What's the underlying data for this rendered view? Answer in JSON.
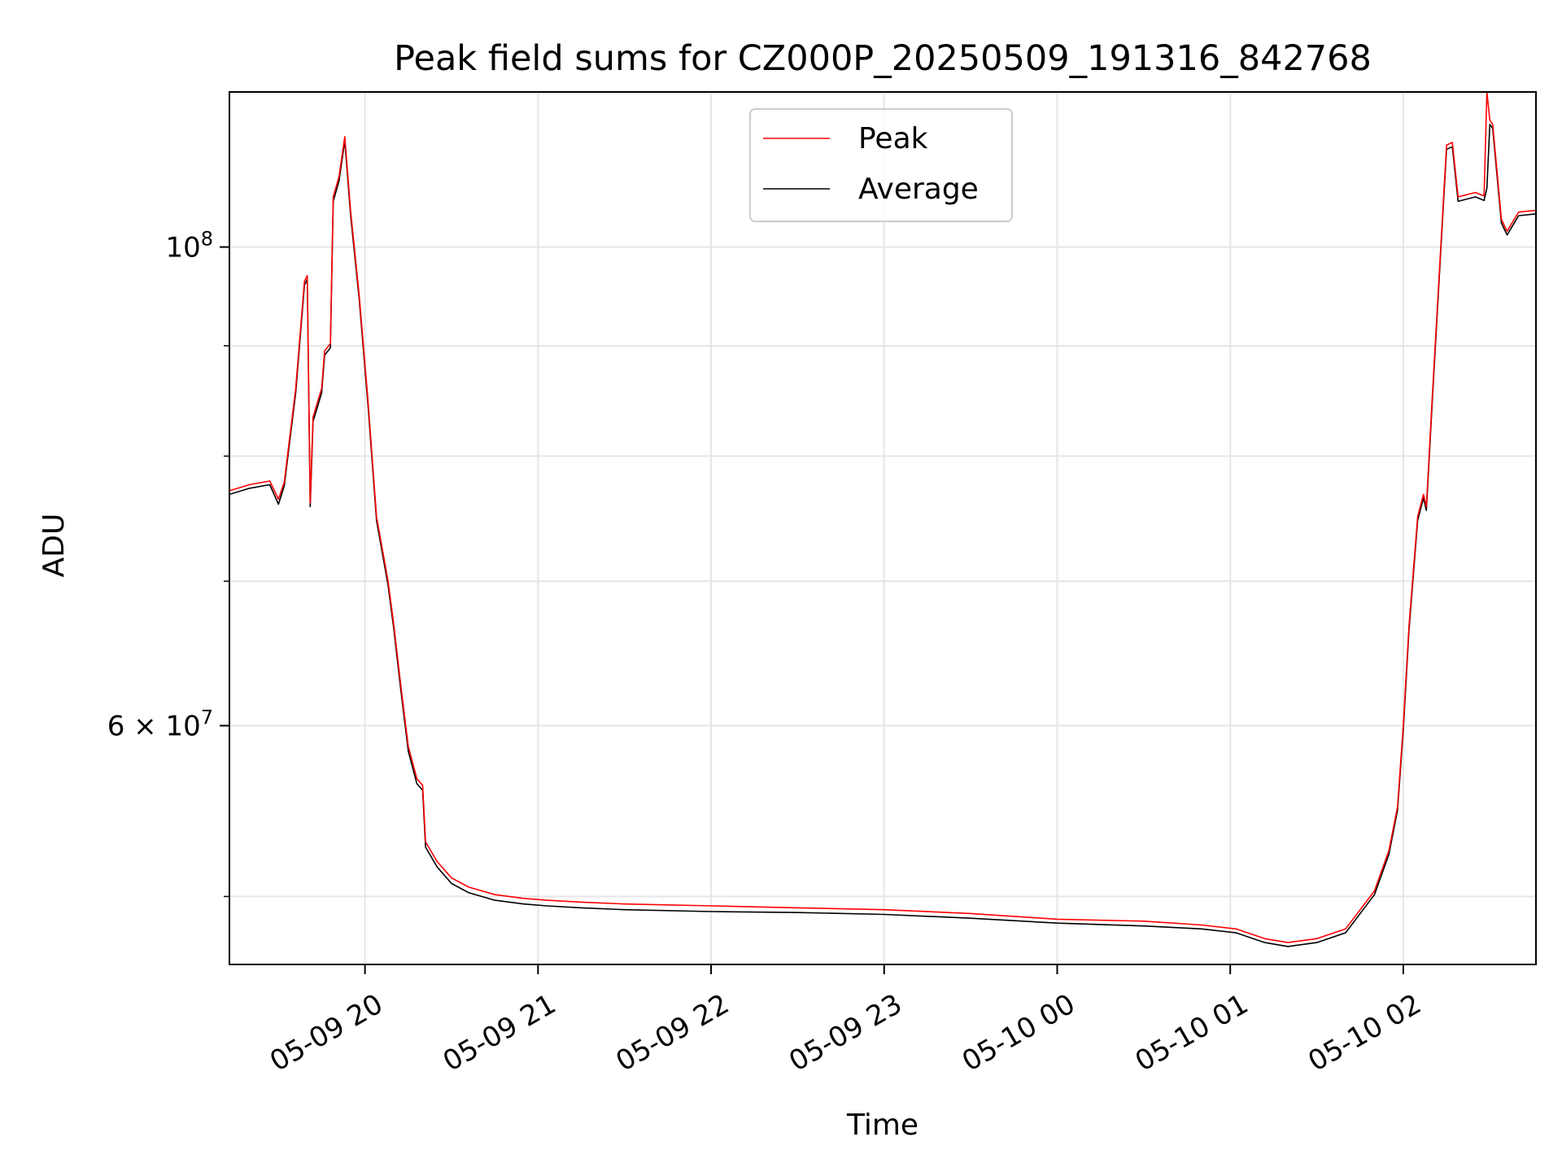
{
  "chart_data": {
    "type": "line",
    "title": "Peak field sums for CZ000P_20250509_191316_842768",
    "xlabel": "Time",
    "ylabel": "ADU",
    "y_scale": "log",
    "xlim": [
      "2025-05-09 19:13",
      "2025-05-10 02:46"
    ],
    "ylim": [
      46500000,
      118000000
    ],
    "x_ticks": [
      {
        "label": "05-09 20",
        "value": "2025-05-09 20:00"
      },
      {
        "label": "05-09 21",
        "value": "2025-05-09 21:00"
      },
      {
        "label": "05-09 22",
        "value": "2025-05-09 22:00"
      },
      {
        "label": "05-09 23",
        "value": "2025-05-09 23:00"
      },
      {
        "label": "05-10 00",
        "value": "2025-05-10 00:00"
      },
      {
        "label": "05-10 01",
        "value": "2025-05-10 01:00"
      },
      {
        "label": "05-10 02",
        "value": "2025-05-10 02:00"
      }
    ],
    "y_major_ticks": [
      {
        "value": 60000000,
        "mantissa": "6",
        "exponent": "7"
      },
      {
        "value": 100000000,
        "mantissa": "",
        "exponent": "8"
      }
    ],
    "y_minor_ticks": [
      50000000,
      70000000,
      80000000,
      90000000
    ],
    "grid": true,
    "legend_position": "top-center",
    "series": [
      {
        "name": "Peak",
        "color": "#ff0000",
        "points": [
          [
            "2025-05-09 19:13",
            77100000
          ],
          [
            "2025-05-09 19:20",
            77600000
          ],
          [
            "2025-05-09 19:27",
            77900000
          ],
          [
            "2025-05-09 19:30",
            76400000
          ],
          [
            "2025-05-09 19:32",
            77800000
          ],
          [
            "2025-05-09 19:36",
            86000000
          ],
          [
            "2025-05-09 19:39",
            96400000
          ],
          [
            "2025-05-09 19:40",
            97000000
          ],
          [
            "2025-05-09 19:41",
            76100000
          ],
          [
            "2025-05-09 19:42",
            83400000
          ],
          [
            "2025-05-09 19:45",
            86000000
          ],
          [
            "2025-05-09 19:46",
            89500000
          ],
          [
            "2025-05-09 19:48",
            90200000
          ],
          [
            "2025-05-09 19:49",
            105500000
          ],
          [
            "2025-05-09 19:51",
            107800000
          ],
          [
            "2025-05-09 19:53",
            112500000
          ],
          [
            "2025-05-09 19:55",
            104000000
          ],
          [
            "2025-05-09 19:58",
            95000000
          ],
          [
            "2025-05-09 20:01",
            85000000
          ],
          [
            "2025-05-09 20:04",
            75000000
          ],
          [
            "2025-05-09 20:08",
            70000000
          ],
          [
            "2025-05-09 20:10",
            66800000
          ],
          [
            "2025-05-09 20:12",
            63300000
          ],
          [
            "2025-05-09 20:15",
            58700000
          ],
          [
            "2025-05-09 20:18",
            56700000
          ],
          [
            "2025-05-09 20:20",
            56300000
          ],
          [
            "2025-05-09 20:21",
            53000000
          ],
          [
            "2025-05-09 20:25",
            51900000
          ],
          [
            "2025-05-09 20:30",
            51000000
          ],
          [
            "2025-05-09 20:36",
            50500000
          ],
          [
            "2025-05-09 20:45",
            50100000
          ],
          [
            "2025-05-09 20:55",
            49900000
          ],
          [
            "2025-05-09 21:03",
            49800000
          ],
          [
            "2025-05-09 21:15",
            49700000
          ],
          [
            "2025-05-09 21:30",
            49600000
          ],
          [
            "2025-05-09 22:00",
            49500000
          ],
          [
            "2025-05-09 22:30",
            49400000
          ],
          [
            "2025-05-09 23:00",
            49300000
          ],
          [
            "2025-05-09 23:30",
            49100000
          ],
          [
            "2025-05-10 00:00",
            48800000
          ],
          [
            "2025-05-10 00:30",
            48700000
          ],
          [
            "2025-05-10 00:50",
            48500000
          ],
          [
            "2025-05-10 01:02",
            48300000
          ],
          [
            "2025-05-10 01:12",
            47800000
          ],
          [
            "2025-05-10 01:20",
            47600000
          ],
          [
            "2025-05-10 01:30",
            47800000
          ],
          [
            "2025-05-10 01:40",
            48300000
          ],
          [
            "2025-05-10 01:50",
            50300000
          ],
          [
            "2025-05-10 01:55",
            52500000
          ],
          [
            "2025-05-10 01:58",
            55000000
          ],
          [
            "2025-05-10 02:00",
            60000000
          ],
          [
            "2025-05-10 02:02",
            66800000
          ],
          [
            "2025-05-10 02:05",
            75000000
          ],
          [
            "2025-05-10 02:07",
            76800000
          ],
          [
            "2025-05-10 02:08",
            75800000
          ],
          [
            "2025-05-10 02:10",
            85000000
          ],
          [
            "2025-05-10 02:13",
            100000000
          ],
          [
            "2025-05-10 02:15",
            111500000
          ],
          [
            "2025-05-10 02:17",
            111800000
          ],
          [
            "2025-05-10 02:19",
            105500000
          ],
          [
            "2025-05-10 02:25",
            106000000
          ],
          [
            "2025-05-10 02:28",
            105600000
          ],
          [
            "2025-05-10 02:29",
            118000000
          ],
          [
            "2025-05-10 02:30",
            114500000
          ],
          [
            "2025-05-10 02:31",
            114000000
          ],
          [
            "2025-05-10 02:34",
            103000000
          ],
          [
            "2025-05-10 02:36",
            101700000
          ],
          [
            "2025-05-10 02:40",
            103800000
          ],
          [
            "2025-05-10 02:46",
            104000000
          ]
        ]
      },
      {
        "name": "Average",
        "color": "#000000",
        "points": [
          [
            "2025-05-09 19:13",
            76800000
          ],
          [
            "2025-05-09 19:20",
            77300000
          ],
          [
            "2025-05-09 19:27",
            77600000
          ],
          [
            "2025-05-09 19:30",
            76000000
          ],
          [
            "2025-05-09 19:32",
            77500000
          ],
          [
            "2025-05-09 19:36",
            85600000
          ],
          [
            "2025-05-09 19:39",
            96000000
          ],
          [
            "2025-05-09 19:40",
            96600000
          ],
          [
            "2025-05-09 19:41",
            75800000
          ],
          [
            "2025-05-09 19:42",
            83000000
          ],
          [
            "2025-05-09 19:45",
            85600000
          ],
          [
            "2025-05-09 19:46",
            89100000
          ],
          [
            "2025-05-09 19:48",
            89800000
          ],
          [
            "2025-05-09 19:49",
            105000000
          ],
          [
            "2025-05-09 19:51",
            107300000
          ],
          [
            "2025-05-09 19:53",
            112000000
          ],
          [
            "2025-05-09 19:55",
            103500000
          ],
          [
            "2025-05-09 19:58",
            94600000
          ],
          [
            "2025-05-09 20:01",
            84600000
          ],
          [
            "2025-05-09 20:04",
            74700000
          ],
          [
            "2025-05-09 20:08",
            69700000
          ],
          [
            "2025-05-09 20:10",
            66500000
          ],
          [
            "2025-05-09 20:12",
            63000000
          ],
          [
            "2025-05-09 20:15",
            58400000
          ],
          [
            "2025-05-09 20:18",
            56400000
          ],
          [
            "2025-05-09 20:20",
            56000000
          ],
          [
            "2025-05-09 20:21",
            52700000
          ],
          [
            "2025-05-09 20:25",
            51600000
          ],
          [
            "2025-05-09 20:30",
            50700000
          ],
          [
            "2025-05-09 20:36",
            50200000
          ],
          [
            "2025-05-09 20:45",
            49800000
          ],
          [
            "2025-05-09 20:55",
            49600000
          ],
          [
            "2025-05-09 21:03",
            49500000
          ],
          [
            "2025-05-09 21:15",
            49400000
          ],
          [
            "2025-05-09 21:30",
            49300000
          ],
          [
            "2025-05-09 22:00",
            49200000
          ],
          [
            "2025-05-09 22:30",
            49150000
          ],
          [
            "2025-05-09 23:00",
            49050000
          ],
          [
            "2025-05-09 23:30",
            48850000
          ],
          [
            "2025-05-10 00:00",
            48600000
          ],
          [
            "2025-05-10 00:30",
            48450000
          ],
          [
            "2025-05-10 00:50",
            48300000
          ],
          [
            "2025-05-10 01:02",
            48100000
          ],
          [
            "2025-05-10 01:12",
            47600000
          ],
          [
            "2025-05-10 01:20",
            47400000
          ],
          [
            "2025-05-10 01:30",
            47600000
          ],
          [
            "2025-05-10 01:40",
            48100000
          ],
          [
            "2025-05-10 01:50",
            50100000
          ],
          [
            "2025-05-10 01:55",
            52300000
          ],
          [
            "2025-05-10 01:58",
            54800000
          ],
          [
            "2025-05-10 02:00",
            59700000
          ],
          [
            "2025-05-10 02:02",
            66500000
          ],
          [
            "2025-05-10 02:05",
            74700000
          ],
          [
            "2025-05-10 02:07",
            76500000
          ],
          [
            "2025-05-10 02:08",
            75500000
          ],
          [
            "2025-05-10 02:10",
            84600000
          ],
          [
            "2025-05-10 02:13",
            99600000
          ],
          [
            "2025-05-10 02:15",
            111000000
          ],
          [
            "2025-05-10 02:17",
            111300000
          ],
          [
            "2025-05-10 02:19",
            105000000
          ],
          [
            "2025-05-10 02:25",
            105500000
          ],
          [
            "2025-05-10 02:28",
            105100000
          ],
          [
            "2025-05-10 02:29",
            106500000
          ],
          [
            "2025-05-10 02:30",
            114000000
          ],
          [
            "2025-05-10 02:31",
            113500000
          ],
          [
            "2025-05-10 02:34",
            102600000
          ],
          [
            "2025-05-10 02:36",
            101300000
          ],
          [
            "2025-05-10 02:40",
            103400000
          ],
          [
            "2025-05-10 02:46",
            103600000
          ]
        ]
      }
    ]
  }
}
